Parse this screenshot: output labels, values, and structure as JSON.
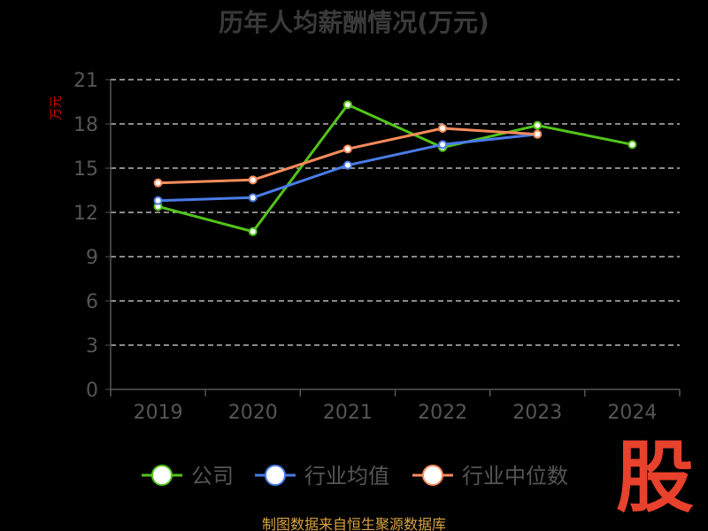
{
  "chart_data": {
    "type": "line",
    "title": "历年人均薪酬情况(万元)",
    "ylabel": "万元",
    "xlabel": "",
    "categories": [
      "2019",
      "2020",
      "2021",
      "2022",
      "2023",
      "2024"
    ],
    "ylim": [
      0,
      21
    ],
    "yticks": [
      "0",
      "3",
      "6",
      "9",
      "12",
      "15",
      "18",
      "21"
    ],
    "grid": true,
    "legend_position": "bottom",
    "series": [
      {
        "name": "公司",
        "color": "#52c41a",
        "values": [
          12.4,
          10.7,
          19.3,
          16.4,
          17.9,
          16.6
        ]
      },
      {
        "name": "行业均值",
        "color": "#4a7ce8",
        "values": [
          12.8,
          13.0,
          15.2,
          16.6,
          17.3,
          null
        ]
      },
      {
        "name": "行业中位数",
        "color": "#f98c5b",
        "values": [
          14.0,
          14.2,
          16.3,
          17.7,
          17.3,
          null
        ]
      }
    ]
  },
  "source": "制图数据来自恒生聚源数据库",
  "logo": "股",
  "colors": {
    "background": "#000000",
    "axis": "#555555",
    "grid": "#dddddd",
    "tick_text": "#555555",
    "ylabel": "#cc0000",
    "title": "#3a3a3a"
  }
}
